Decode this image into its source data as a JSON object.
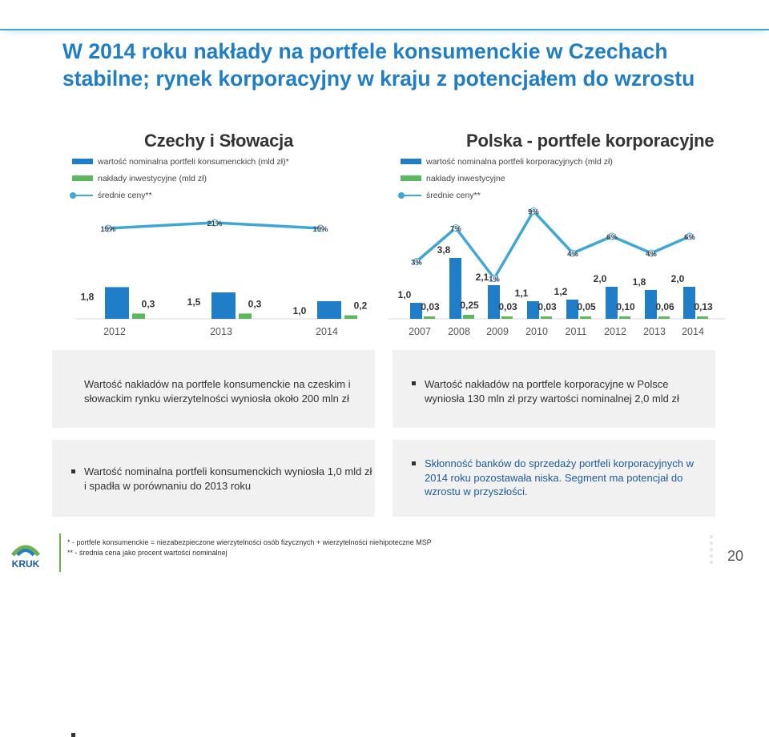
{
  "slide": {
    "title_line1": "W 2014 roku nakłady na portfele konsumenckie w Czechach",
    "title_line2": "stabilne; rynek korporacyjny w kraju z potencjałem do wzrostu",
    "page_number": "20",
    "logo_text": "KRUK"
  },
  "colors": {
    "bar": "#1f7ec7",
    "invest": "#5cb85c",
    "line": "#3fa7d6",
    "title": "#1f7ec7"
  },
  "left_panel": {
    "title": "Czechy i Słowacja",
    "legend": [
      "wartość nominalna portfeli konsumenckich (mld zł)*",
      "nakłady inwestycyjne (mld zł)",
      "średnie ceny**"
    ]
  },
  "right_panel": {
    "title": "Polska - portfele korporacyjne",
    "legend": [
      "wartość nominalna portfeli korporacyjnych (mld zł)",
      "nakłady inwestycyjne",
      "średnie ceny**"
    ]
  },
  "chart_data": [
    {
      "type": "bar",
      "title": "Czechy i Słowacja",
      "categories": [
        "2012",
        "2013",
        "2014"
      ],
      "series": [
        {
          "name": "wartość nominalna portfeli konsumenckich (mld zł)*",
          "kind": "bar",
          "values": [
            1.8,
            1.5,
            1.0
          ],
          "labels": [
            "1,8",
            "1,5",
            "1,0"
          ]
        },
        {
          "name": "nakłady inwestycyjne (mld zł)",
          "kind": "bar",
          "values": [
            0.3,
            0.3,
            0.2
          ],
          "labels": [
            "0,3",
            "0,3",
            "0,2"
          ]
        },
        {
          "name": "średnie ceny**",
          "kind": "line",
          "values": [
            19,
            21,
            19
          ],
          "labels": [
            "19%",
            "21%",
            "19%"
          ]
        }
      ]
    },
    {
      "type": "bar",
      "title": "Polska - portfele korporacyjne",
      "categories": [
        "2007",
        "2008",
        "2009",
        "2010",
        "2011",
        "2012",
        "2013",
        "2014"
      ],
      "series": [
        {
          "name": "wartość nominalna portfeli korporacyjnych (mld zł)",
          "kind": "bar",
          "values": [
            1.0,
            3.8,
            2.1,
            1.1,
            1.2,
            2.0,
            1.8,
            2.0
          ],
          "labels": [
            "1,0",
            "3,8",
            "2,1",
            "1,1",
            "1,2",
            "2,0",
            "1,8",
            "2,0"
          ]
        },
        {
          "name": "nakłady inwestycyjne",
          "kind": "bar",
          "values": [
            0.03,
            0.25,
            0.03,
            0.03,
            0.05,
            0.1,
            0.06,
            0.13
          ],
          "labels": [
            "0,03",
            "0,25",
            "0,03",
            "0,03",
            "0,05",
            "0,10",
            "0,06",
            "0,13"
          ]
        },
        {
          "name": "średnie ceny**",
          "kind": "line",
          "values": [
            3,
            7,
            1,
            9,
            4,
            6,
            4,
            6
          ],
          "labels": [
            "3%",
            "7%",
            "1%",
            "9%",
            "4%",
            "6%",
            "4%",
            "6%"
          ]
        }
      ]
    }
  ],
  "boxes": [
    "Wartość nakładów na portfele konsumenckie na czeskim i słowackim rynku wierzytelności wyniosła około 200 mln zł",
    "Wartość nakładów na portfele korporacyjne w Polsce wyniosła 130 mln zł przy wartości nominalnej 2,0 mld zł",
    "Wartość nominalna portfeli konsumenckich wyniosła 1,0 mld zł i spadła w porównaniu do 2013 roku",
    "Skłonność banków do sprzedaży portfeli korporacyjnych w 2014 roku pozostawała niska. Segment ma potencjał do wzrostu w przyszłości."
  ],
  "footnotes": [
    "* - portfele konsumenckie = niezabezpieczone wierzytelności osób fizycznych + wierzytelności niehipoteczne MSP",
    "** - średnia cena jako procent wartości nominalnej"
  ]
}
